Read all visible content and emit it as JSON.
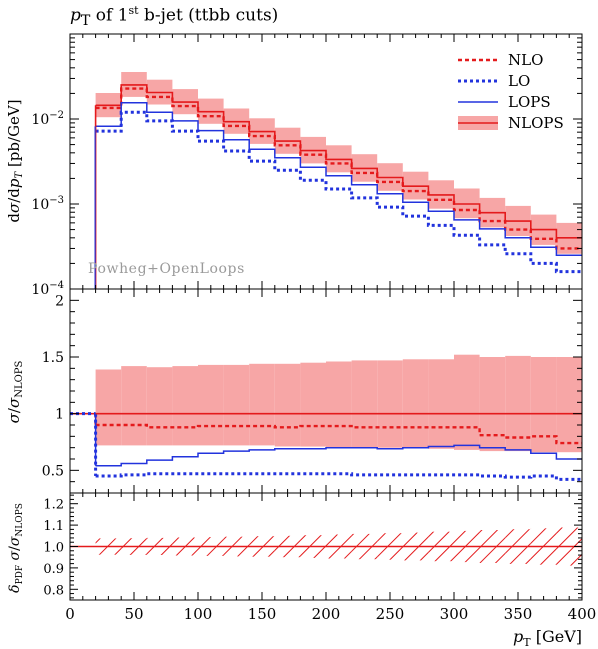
{
  "chart_data": {
    "type": "step-histogram",
    "title": "pT of 1st b-jet (ttbb cuts)",
    "xlabel": "pT [GeV]",
    "xlim": [
      0,
      400
    ],
    "x_ticks": [
      "0",
      "50",
      "100",
      "150",
      "200",
      "250",
      "300",
      "350",
      "400"
    ],
    "bin_edges": [
      20,
      40,
      60,
      80,
      100,
      120,
      140,
      160,
      180,
      200,
      220,
      240,
      260,
      280,
      300,
      320,
      340,
      360,
      380,
      400
    ],
    "watermark": "Powheg+OpenLoops",
    "legend": {
      "placement": "top-right",
      "entries": [
        "NLO",
        "LO",
        "LOPS",
        "NLOPS"
      ]
    },
    "colors": {
      "nlo": "#e41a1c",
      "lo": "#2233dd",
      "lops": "#2233dd",
      "nlops": "#e41a1c",
      "band": "#f7a6a6"
    },
    "main_panel": {
      "ylabel": "dσ/dpT [pb/GeV]",
      "yscale": "log",
      "ylim": [
        0.0001,
        0.1
      ],
      "y_ticks": [
        "10^-4",
        "10^-3",
        "10^-2"
      ],
      "series": [
        {
          "name": "NLOPS",
          "values": [
            0.0145,
            0.0252,
            0.0205,
            0.0158,
            0.0122,
            0.0093,
            0.0071,
            0.0055,
            0.00425,
            0.00335,
            0.00262,
            0.00205,
            0.00162,
            0.00128,
            0.001,
            0.00079,
            0.00063,
            0.0005,
            0.0004
          ]
        },
        {
          "name": "NLOPS_band_low",
          "values": [
            0.0105,
            0.0182,
            0.0148,
            0.0114,
            0.0088,
            0.0067,
            0.0051,
            0.0039,
            0.003,
            0.00236,
            0.00183,
            0.00143,
            0.00113,
            0.00088,
            0.00068,
            0.00053,
            0.00042,
            0.00033,
            0.00026
          ]
        },
        {
          "name": "NLOPS_band_high",
          "values": [
            0.0202,
            0.0357,
            0.029,
            0.0225,
            0.0174,
            0.0133,
            0.0102,
            0.0079,
            0.00615,
            0.0049,
            0.00385,
            0.00302,
            0.0024,
            0.0019,
            0.00152,
            0.00118,
            0.00095,
            0.00075,
            0.0006
          ]
        },
        {
          "name": "NLO",
          "values": [
            0.0135,
            0.0228,
            0.0182,
            0.0142,
            0.0108,
            0.0083,
            0.0063,
            0.0049,
            0.0038,
            0.003,
            0.00232,
            0.00182,
            0.00142,
            0.00112,
            0.00085,
            0.00063,
            0.0005,
            0.00039,
            0.0003
          ]
        },
        {
          "name": "LOPS",
          "values": [
            0.0082,
            0.0155,
            0.012,
            0.0095,
            0.0073,
            0.0057,
            0.0044,
            0.0035,
            0.0027,
            0.00215,
            0.00168,
            0.00132,
            0.00105,
            0.00082,
            0.00065,
            0.00051,
            0.0004,
            0.00031,
            0.00025
          ]
        },
        {
          "name": "LO",
          "values": [
            0.0072,
            0.012,
            0.0095,
            0.0072,
            0.0055,
            0.0042,
            0.0032,
            0.0025,
            0.0019,
            0.0015,
            0.00118,
            0.00092,
            0.00072,
            0.00056,
            0.00043,
            0.00033,
            0.00026,
            0.0002,
            0.00016
          ]
        }
      ]
    },
    "ratio_panel": {
      "ylabel": "σ/σNLOPS",
      "ylim": [
        0.3,
        2.1
      ],
      "y_ticks": [
        "0.5",
        "1",
        "1.5",
        "2"
      ],
      "left_segment": {
        "x": [
          0,
          20
        ],
        "value": 1.0
      },
      "series": [
        {
          "name": "NLOPS",
          "values": [
            1,
            1,
            1,
            1,
            1,
            1,
            1,
            1,
            1,
            1,
            1,
            1,
            1,
            1,
            1,
            1,
            1,
            1,
            1
          ]
        },
        {
          "name": "NLOPS_band_low",
          "values": [
            0.72,
            0.72,
            0.72,
            0.72,
            0.72,
            0.72,
            0.72,
            0.71,
            0.71,
            0.7,
            0.7,
            0.7,
            0.7,
            0.69,
            0.68,
            0.67,
            0.67,
            0.66,
            0.66
          ]
        },
        {
          "name": "NLOPS_band_high",
          "values": [
            1.39,
            1.42,
            1.41,
            1.42,
            1.43,
            1.43,
            1.44,
            1.44,
            1.45,
            1.46,
            1.47,
            1.47,
            1.48,
            1.48,
            1.52,
            1.5,
            1.51,
            1.5,
            1.5
          ]
        },
        {
          "name": "NLO",
          "values": [
            0.9,
            0.9,
            0.88,
            0.88,
            0.89,
            0.89,
            0.89,
            0.88,
            0.89,
            0.89,
            0.88,
            0.88,
            0.88,
            0.88,
            0.88,
            0.81,
            0.79,
            0.8,
            0.74
          ]
        },
        {
          "name": "LOPS",
          "values": [
            0.54,
            0.56,
            0.59,
            0.62,
            0.65,
            0.67,
            0.68,
            0.69,
            0.69,
            0.7,
            0.7,
            0.69,
            0.7,
            0.71,
            0.72,
            0.7,
            0.68,
            0.65,
            0.6
          ]
        },
        {
          "name": "LO",
          "values": [
            0.45,
            0.46,
            0.47,
            0.47,
            0.47,
            0.47,
            0.47,
            0.47,
            0.47,
            0.47,
            0.46,
            0.46,
            0.46,
            0.46,
            0.46,
            0.45,
            0.44,
            0.45,
            0.42
          ]
        }
      ]
    },
    "pdf_panel": {
      "ylabel": "δPDF σ/σNLOPS",
      "ylim": [
        0.75,
        1.25
      ],
      "y_ticks": [
        "0.8",
        "0.9",
        "1.0",
        "1.1",
        "1.2"
      ],
      "central": {
        "x": [
          0,
          400
        ],
        "value": 1.0
      },
      "band_low": [
        0.962,
        0.961,
        0.96,
        0.958,
        0.956,
        0.954,
        0.952,
        0.95,
        0.947,
        0.944,
        0.941,
        0.938,
        0.935,
        0.931,
        0.927,
        0.923,
        0.919,
        0.915,
        0.911
      ],
      "band_high": [
        1.038,
        1.039,
        1.04,
        1.042,
        1.044,
        1.046,
        1.048,
        1.05,
        1.053,
        1.056,
        1.059,
        1.062,
        1.065,
        1.069,
        1.073,
        1.077,
        1.081,
        1.085,
        1.089
      ]
    }
  }
}
